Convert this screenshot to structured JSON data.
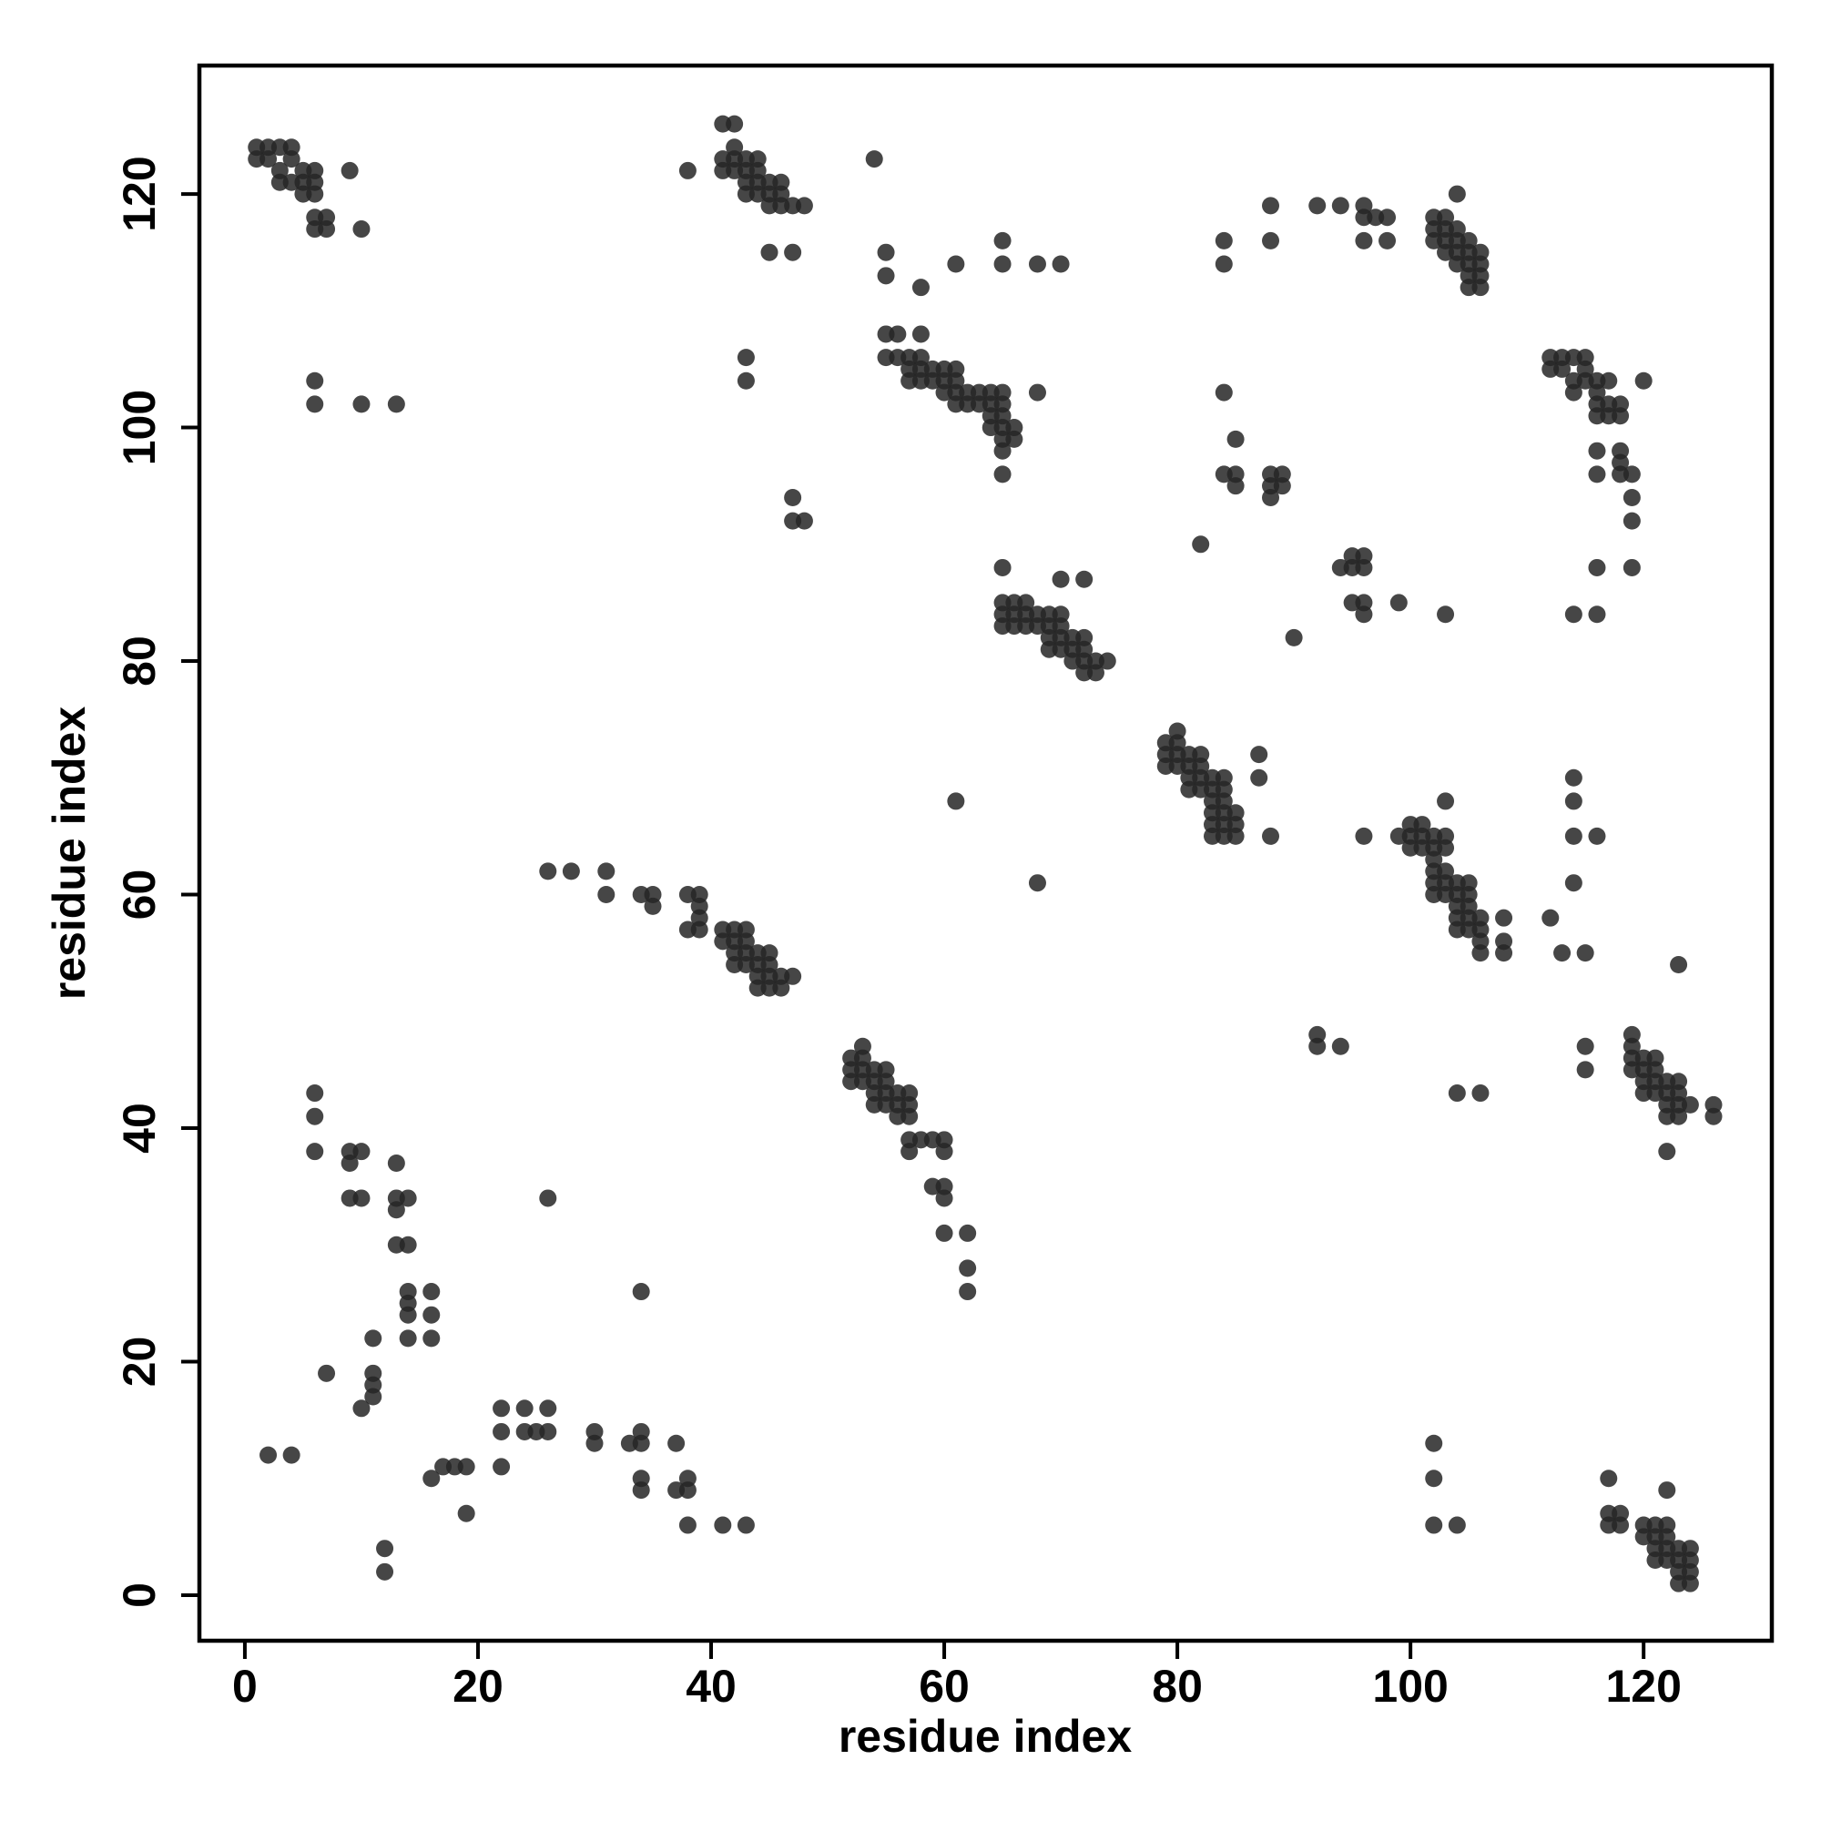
{
  "chart_data": {
    "type": "scatter",
    "xlabel": "residue index",
    "ylabel": "residue index",
    "color": "#262626",
    "xlim": [
      -3.9,
      131
    ],
    "ylim": [
      -3.9,
      131
    ],
    "xticks": [
      0,
      20,
      40,
      60,
      80,
      100,
      120
    ],
    "yticks": [
      0,
      20,
      40,
      60,
      80,
      100,
      120
    ],
    "x": [
      1,
      1,
      2,
      2,
      3,
      3,
      3,
      4,
      4,
      4,
      5,
      5,
      5,
      6,
      6,
      6,
      6,
      6,
      7,
      7,
      9,
      10,
      6,
      6,
      10,
      13,
      38,
      41,
      42,
      41,
      41,
      42,
      42,
      42,
      43,
      43,
      43,
      43,
      44,
      44,
      44,
      44,
      45,
      45,
      45,
      46,
      46,
      46,
      47,
      48,
      45,
      47,
      43,
      43,
      47,
      47,
      48,
      54,
      55,
      55,
      58,
      61,
      65,
      65,
      68,
      70,
      55,
      56,
      58,
      55,
      56,
      57,
      57,
      57,
      58,
      58,
      58,
      59,
      59,
      60,
      60,
      60,
      61,
      61,
      61,
      61,
      62,
      62,
      63,
      63,
      64,
      64,
      64,
      64,
      65,
      65,
      65,
      65,
      65,
      65,
      66,
      66,
      68,
      65,
      84,
      84,
      88,
      88,
      92,
      94,
      96,
      96,
      96,
      97,
      98,
      98,
      102,
      102,
      102,
      103,
      103,
      103,
      103,
      104,
      104,
      104,
      104,
      104,
      105,
      105,
      105,
      105,
      106,
      106,
      106,
      106,
      105,
      84,
      84,
      85,
      85,
      85,
      88,
      88,
      88,
      89,
      89,
      82,
      94,
      95,
      95,
      95,
      96,
      96,
      96,
      96,
      99,
      103,
      90,
      112,
      112,
      113,
      113,
      114,
      114,
      114,
      115,
      115,
      115,
      116,
      116,
      116,
      116,
      117,
      117,
      117,
      118,
      118,
      120,
      116,
      116,
      118,
      118,
      118,
      119,
      119,
      119,
      119,
      116,
      114,
      116,
      65,
      65,
      65,
      65,
      66,
      66,
      66,
      67,
      67,
      67,
      68,
      68,
      69,
      69,
      69,
      69,
      70,
      70,
      70,
      70,
      70,
      71,
      71,
      71,
      72,
      72,
      72,
      72,
      72,
      73,
      73,
      74,
      79,
      79,
      79,
      80,
      80,
      80,
      80,
      81,
      81,
      81,
      81,
      82,
      82,
      82,
      82,
      83,
      83,
      83,
      83,
      83,
      83,
      84,
      84,
      84,
      84,
      84,
      84,
      85,
      85,
      85,
      87,
      87,
      88,
      61,
      68,
      96,
      99,
      100,
      100,
      100,
      101,
      101,
      101,
      102,
      102,
      102,
      102,
      102,
      102,
      103,
      103,
      103,
      103,
      103,
      103,
      104,
      104,
      104,
      104,
      104,
      105,
      105,
      105,
      105,
      105,
      106,
      106,
      106,
      106,
      108,
      108,
      108,
      112,
      113,
      114,
      114,
      114,
      114,
      115,
      116,
      26,
      28,
      31,
      31,
      34,
      35,
      35,
      38,
      38,
      39,
      39,
      39,
      39,
      41,
      41,
      42,
      42,
      42,
      42,
      43,
      43,
      43,
      43,
      44,
      44,
      44,
      44,
      45,
      45,
      45,
      45,
      46,
      46,
      47,
      52,
      52,
      52,
      53,
      53,
      53,
      53,
      54,
      54,
      54,
      54,
      55,
      55,
      55,
      55,
      56,
      56,
      56,
      57,
      57,
      57,
      57,
      57,
      58,
      59,
      59,
      60,
      60,
      60,
      60,
      60,
      62,
      62,
      62,
      119,
      119,
      119,
      119,
      120,
      120,
      120,
      120,
      121,
      121,
      121,
      121,
      122,
      122,
      122,
      122,
      122,
      123,
      123,
      123,
      123,
      123,
      124,
      126,
      126,
      115,
      115,
      104,
      106,
      92,
      92,
      94,
      117,
      117,
      117,
      118,
      118,
      120,
      120,
      121,
      121,
      121,
      121,
      122,
      122,
      122,
      122,
      122,
      123,
      123,
      123,
      123,
      124,
      124,
      124,
      124,
      102,
      102,
      102,
      104,
      6,
      6,
      6,
      9,
      9,
      9,
      10,
      10,
      13,
      13,
      13,
      14,
      13,
      14,
      14,
      14,
      14,
      14,
      16,
      16,
      16,
      11,
      11,
      11,
      11,
      10,
      7,
      2,
      4,
      12,
      12,
      16,
      17,
      18,
      19,
      19,
      22,
      22,
      22,
      24,
      24,
      25,
      26,
      26,
      26,
      30,
      30,
      33,
      34,
      34,
      34,
      34,
      34,
      37,
      37,
      38,
      38,
      38,
      41,
      43
    ],
    "values": [
      124,
      123,
      124,
      123,
      124,
      122,
      121,
      124,
      123,
      121,
      122,
      121,
      120,
      122,
      121,
      120,
      117,
      118,
      118,
      117,
      122,
      117,
      104,
      102,
      102,
      102,
      122,
      126,
      126,
      123,
      122,
      124,
      123,
      122,
      123,
      122,
      121,
      120,
      123,
      122,
      121,
      120,
      121,
      120,
      119,
      121,
      120,
      119,
      119,
      119,
      115,
      115,
      106,
      104,
      94,
      92,
      92,
      123,
      115,
      113,
      112,
      114,
      116,
      114,
      114,
      114,
      108,
      108,
      108,
      106,
      106,
      106,
      105,
      104,
      106,
      105,
      104,
      105,
      104,
      105,
      104,
      103,
      105,
      104,
      103,
      102,
      103,
      102,
      103,
      102,
      103,
      102,
      101,
      100,
      103,
      102,
      101,
      100,
      99,
      98,
      100,
      99,
      103,
      96,
      116,
      114,
      119,
      116,
      119,
      119,
      119,
      118,
      116,
      118,
      118,
      116,
      118,
      117,
      116,
      118,
      117,
      116,
      115,
      117,
      116,
      115,
      114,
      120,
      116,
      115,
      114,
      113,
      115,
      114,
      113,
      112,
      112,
      103,
      96,
      99,
      96,
      95,
      96,
      95,
      94,
      96,
      95,
      90,
      88,
      89,
      88,
      85,
      89,
      88,
      85,
      84,
      85,
      84,
      82,
      106,
      105,
      106,
      105,
      106,
      104,
      103,
      106,
      105,
      104,
      104,
      103,
      102,
      101,
      104,
      102,
      101,
      102,
      101,
      104,
      98,
      96,
      98,
      97,
      96,
      96,
      94,
      92,
      88,
      88,
      84,
      84,
      88,
      85,
      84,
      83,
      85,
      84,
      83,
      85,
      84,
      83,
      84,
      83,
      84,
      83,
      82,
      81,
      84,
      83,
      82,
      81,
      87,
      82,
      81,
      80,
      82,
      81,
      80,
      79,
      87,
      80,
      79,
      80,
      73,
      72,
      71,
      74,
      73,
      72,
      71,
      72,
      71,
      70,
      69,
      72,
      71,
      70,
      69,
      70,
      69,
      68,
      67,
      66,
      65,
      70,
      69,
      68,
      67,
      66,
      65,
      67,
      66,
      65,
      72,
      70,
      65,
      68,
      61,
      65,
      65,
      66,
      65,
      64,
      66,
      65,
      64,
      65,
      64,
      63,
      62,
      61,
      60,
      68,
      65,
      64,
      62,
      61,
      60,
      61,
      60,
      59,
      58,
      57,
      61,
      60,
      59,
      58,
      57,
      58,
      57,
      56,
      55,
      58,
      56,
      55,
      58,
      55,
      70,
      68,
      65,
      61,
      55,
      65,
      62,
      62,
      62,
      60,
      60,
      60,
      59,
      60,
      57,
      60,
      59,
      58,
      57,
      57,
      56,
      57,
      56,
      55,
      54,
      57,
      56,
      55,
      54,
      55,
      54,
      53,
      52,
      55,
      54,
      53,
      52,
      53,
      52,
      53,
      46,
      45,
      44,
      47,
      46,
      45,
      44,
      45,
      44,
      43,
      42,
      45,
      44,
      43,
      42,
      43,
      42,
      41,
      43,
      42,
      41,
      39,
      38,
      39,
      39,
      35,
      39,
      38,
      35,
      34,
      31,
      31,
      28,
      26,
      48,
      47,
      46,
      45,
      46,
      45,
      44,
      43,
      46,
      45,
      44,
      43,
      44,
      43,
      42,
      41,
      38,
      44,
      43,
      42,
      41,
      54,
      42,
      42,
      41,
      47,
      45,
      43,
      43,
      48,
      47,
      47,
      10,
      7,
      6,
      7,
      6,
      6,
      5,
      6,
      5,
      4,
      3,
      9,
      6,
      5,
      4,
      3,
      4,
      3,
      2,
      1,
      4,
      3,
      2,
      1,
      13,
      10,
      6,
      6,
      43,
      41,
      38,
      38,
      37,
      34,
      38,
      34,
      37,
      34,
      33,
      34,
      30,
      30,
      26,
      25,
      24,
      22,
      26,
      24,
      22,
      22,
      19,
      18,
      17,
      16,
      19,
      12,
      12,
      4,
      2,
      10,
      11,
      11,
      11,
      7,
      16,
      14,
      11,
      16,
      14,
      14,
      16,
      14,
      34,
      14,
      13,
      13,
      14,
      13,
      10,
      9,
      26,
      13,
      9,
      10,
      9,
      6,
      6,
      6
    ]
  }
}
